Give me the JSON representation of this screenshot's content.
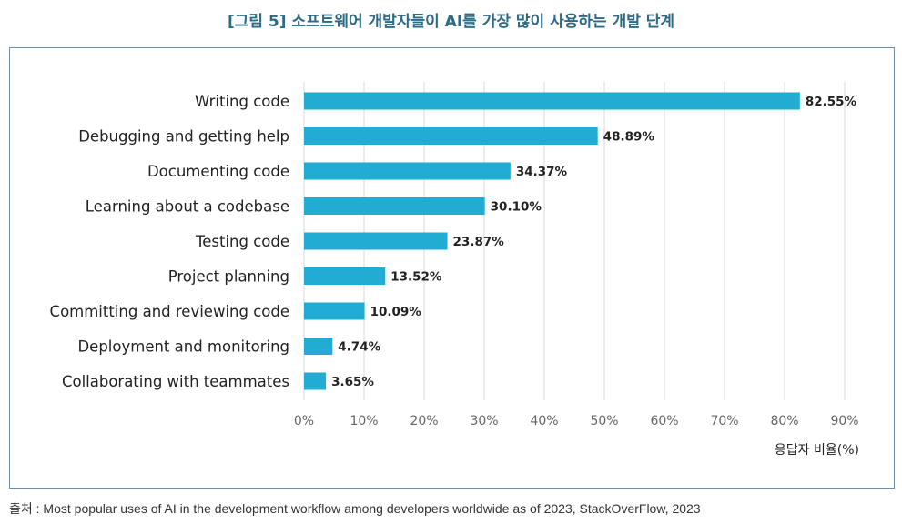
{
  "figure": {
    "title": "[그림 5] 소프트웨어 개발자들이 AI를 가장 많이 사용하는 개발 단계",
    "source": "출처 : Most popular uses of AI in the development workflow among developers worldwide as of 2023, StackOverFlow, 2023"
  },
  "colors": {
    "bar": "#22acd3",
    "grid": "#d9d9d9",
    "title": "#2d6a86"
  },
  "chart_data": {
    "type": "bar",
    "orientation": "horizontal",
    "categories": [
      "Writing code",
      "Debugging and getting help",
      "Documenting code",
      "Learning about a codebase",
      "Testing code",
      "Project planning",
      "Committing and reviewing code",
      "Deployment and monitoring",
      "Collaborating with teammates"
    ],
    "values": [
      82.55,
      48.89,
      34.37,
      30.1,
      23.87,
      13.52,
      10.09,
      4.74,
      3.65
    ],
    "value_labels": [
      "82.55%",
      "48.89%",
      "34.37%",
      "30.10%",
      "23.87%",
      "13.52%",
      "10.09%",
      "4.74%",
      "3.65%"
    ],
    "xlim": [
      0,
      90
    ],
    "xticks": [
      0,
      10,
      20,
      30,
      40,
      50,
      60,
      70,
      80,
      90
    ],
    "xtick_labels": [
      "0%",
      "10%",
      "20%",
      "30%",
      "40%",
      "50%",
      "60%",
      "70%",
      "80%",
      "90%"
    ],
    "xlabel": "응답자 비율(%)",
    "grid": true
  }
}
